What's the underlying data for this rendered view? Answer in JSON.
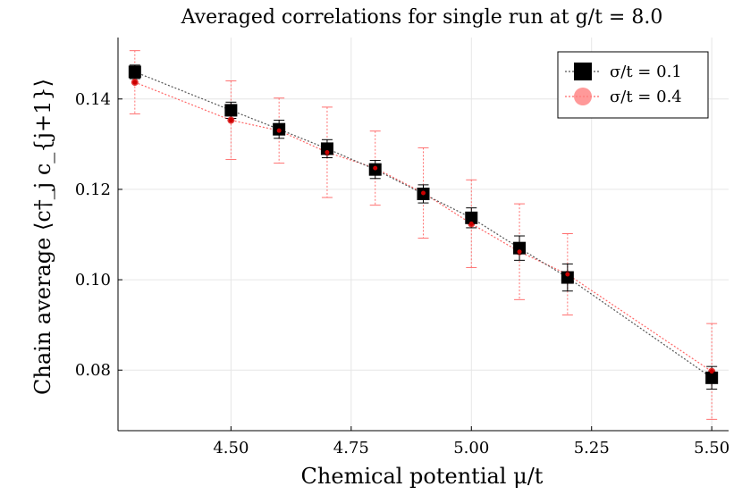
{
  "chart_data": {
    "type": "scatter",
    "title": "Averaged correlations for single run at g/t = 8.0",
    "xlabel": "Chemical potential μ/t",
    "ylabel": "Chain average ⟨c†_j c_{j+1}⟩",
    "xlim": [
      4.265,
      5.535
    ],
    "ylim": [
      0.0666,
      0.1536
    ],
    "grid": true,
    "legend_position": "top-right",
    "x_ticks": [
      4.5,
      4.75,
      5.0,
      5.25,
      5.5
    ],
    "x_tick_labels": [
      "4.50",
      "4.75",
      "5.00",
      "5.25",
      "5.50"
    ],
    "y_ticks": [
      0.08,
      0.1,
      0.12,
      0.14
    ],
    "y_tick_labels": [
      "0.08",
      "0.10",
      "0.12",
      "0.14"
    ],
    "x": [
      4.3,
      4.5,
      4.6,
      4.7,
      4.8,
      4.9,
      5.0,
      5.1,
      5.2,
      5.5
    ],
    "series": [
      {
        "name": "σ/t = 0.1",
        "color": "#000000",
        "marker": "square",
        "values": [
          0.146,
          0.1375,
          0.1333,
          0.129,
          0.1244,
          0.119,
          0.1137,
          0.107,
          0.1005,
          0.0783
        ],
        "errors": [
          0.0015,
          0.0018,
          0.002,
          0.002,
          0.002,
          0.002,
          0.0022,
          0.0027,
          0.003,
          0.0025
        ]
      },
      {
        "name": "σ/t = 0.4",
        "color": "#ff0000",
        "marker": "circle",
        "values": [
          0.1437,
          0.1353,
          0.133,
          0.1282,
          0.1247,
          0.1192,
          0.1124,
          0.1062,
          0.1012,
          0.0797
        ],
        "errors": [
          0.007,
          0.0087,
          0.0072,
          0.01,
          0.0082,
          0.01,
          0.0097,
          0.0106,
          0.009,
          0.0106
        ]
      }
    ]
  },
  "legend": {
    "items": [
      "σ/t = 0.1",
      "σ/t = 0.4"
    ]
  }
}
